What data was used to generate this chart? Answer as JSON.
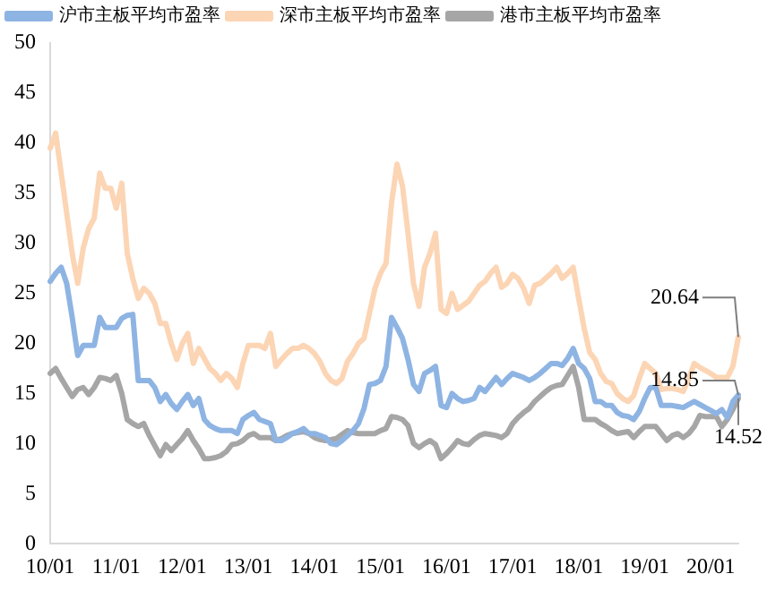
{
  "chart_data": {
    "type": "line",
    "categories": [
      "10/01",
      null,
      null,
      null,
      null,
      null,
      null,
      null,
      null,
      null,
      null,
      null,
      "11/01",
      null,
      null,
      null,
      null,
      null,
      null,
      null,
      null,
      null,
      null,
      null,
      "12/01",
      null,
      null,
      null,
      null,
      null,
      null,
      null,
      null,
      null,
      null,
      null,
      "13/01",
      null,
      null,
      null,
      null,
      null,
      null,
      null,
      null,
      null,
      null,
      null,
      "14/01",
      null,
      null,
      null,
      null,
      null,
      null,
      null,
      null,
      null,
      null,
      null,
      "15/01",
      null,
      null,
      null,
      null,
      null,
      null,
      null,
      null,
      null,
      null,
      null,
      "16/01",
      null,
      null,
      null,
      null,
      null,
      null,
      null,
      null,
      null,
      null,
      null,
      "17/01",
      null,
      null,
      null,
      null,
      null,
      null,
      null,
      null,
      null,
      null,
      null,
      "18/01",
      null,
      null,
      null,
      null,
      null,
      null,
      null,
      null,
      null,
      null,
      null,
      "19/01",
      null,
      null,
      null,
      null,
      null,
      null,
      null,
      null,
      null,
      null,
      null,
      "20/01",
      null,
      null,
      null,
      null,
      null
    ],
    "series": [
      {
        "name": "沪市主板平均市盈率",
        "color": "#8eb4e3",
        "values": [
          26.2,
          27,
          27.6,
          26,
          22.6,
          18.8,
          19.8,
          19.8,
          19.8,
          22.6,
          21.6,
          21.6,
          21.6,
          22.5,
          22.8,
          22.9,
          16.3,
          16.3,
          16.3,
          15.6,
          14.2,
          14.9,
          14,
          13.4,
          14.2,
          14.9,
          13.8,
          14.5,
          12.4,
          11.8,
          11.5,
          11.3,
          11.3,
          11.3,
          11,
          12.4,
          12.8,
          13.1,
          12.4,
          12.2,
          12,
          10.3,
          10.3,
          10.6,
          11,
          11.2,
          11.5,
          11,
          11,
          10.8,
          10.6,
          10,
          9.9,
          10.3,
          10.8,
          11.3,
          12,
          13.5,
          15.9,
          16,
          16.3,
          17.7,
          22.6,
          21.6,
          20.5,
          18.4,
          15.9,
          15.2,
          17,
          17.3,
          17.7,
          13.8,
          13.6,
          15,
          14.5,
          14.2,
          14.3,
          14.5,
          15.6,
          15.2,
          15.9,
          16.6,
          15.9,
          16.5,
          17,
          16.8,
          16.6,
          16.3,
          16.6,
          17,
          17.5,
          18,
          18,
          17.8,
          18.5,
          19.5,
          18,
          17.5,
          16.5,
          14.2,
          14.2,
          13.8,
          13.8,
          13.1,
          12.8,
          12.7,
          12.4,
          13.2,
          14.5,
          15.6,
          15.6,
          13.8,
          13.8,
          13.8,
          13.7,
          13.6,
          13.9,
          14.2,
          13.9,
          13.6,
          13.3,
          13,
          13.4,
          12.6,
          14.2,
          14.85
        ],
        "value_labels": [
          null,
          null,
          null,
          null,
          null,
          null,
          null,
          null,
          null,
          null,
          null,
          null,
          null,
          null,
          null,
          null,
          null,
          null,
          null,
          null,
          null,
          null,
          null,
          null,
          null,
          null,
          null,
          null,
          null,
          null,
          null,
          null,
          null,
          null,
          null,
          null,
          null,
          null,
          null,
          null,
          null,
          null,
          null,
          null,
          null,
          null,
          null,
          null,
          null,
          null,
          null,
          null,
          null,
          null,
          null,
          null,
          null,
          null,
          null,
          null,
          null,
          null,
          null,
          null,
          null,
          null,
          null,
          null,
          null,
          null,
          null,
          null,
          null,
          null,
          null,
          null,
          null,
          null,
          null,
          null,
          null,
          null,
          null,
          null,
          null,
          null,
          null,
          null,
          null,
          null,
          null,
          null,
          null,
          null,
          null,
          null,
          null,
          null,
          null,
          null,
          null,
          null,
          null,
          null,
          null,
          null,
          null,
          null,
          null,
          null,
          null,
          null,
          null,
          null,
          null,
          null,
          null,
          null,
          null,
          null,
          null,
          null,
          null,
          null,
          null,
          "14.85"
        ]
      },
      {
        "name": "深市主板平均市盈率",
        "color": "#fcd5b5",
        "values": [
          39.5,
          41,
          37,
          33,
          29,
          26,
          29.5,
          31.5,
          32.5,
          37,
          35.5,
          35.5,
          33.5,
          36,
          29,
          26.5,
          24.5,
          25.5,
          25,
          24,
          22,
          22,
          20,
          18.4,
          20,
          21,
          18,
          19.5,
          18.5,
          17.5,
          17,
          16.3,
          17,
          16.5,
          15.6,
          18,
          19.8,
          19.8,
          19.8,
          19.5,
          21,
          17.7,
          18.4,
          19,
          19.5,
          19.5,
          19.8,
          19.5,
          19,
          18.2,
          17,
          16.3,
          16,
          16.5,
          18.2,
          19,
          20,
          20.5,
          23,
          25.5,
          27,
          28,
          34,
          37.9,
          35.7,
          31,
          26,
          23.7,
          27.6,
          29,
          31,
          23.4,
          23,
          25,
          23.4,
          23.8,
          24.2,
          25,
          25.8,
          26.2,
          27,
          27.6,
          25.6,
          26,
          26.9,
          26.5,
          25.5,
          24,
          25.8,
          26,
          26.5,
          27,
          27.6,
          26.5,
          27,
          27.6,
          24.5,
          21.5,
          19.1,
          18.4,
          17,
          16.2,
          16,
          15,
          14.5,
          14.2,
          14.8,
          16.5,
          18,
          17.5,
          17,
          15.4,
          15.5,
          15.5,
          15.4,
          15.2,
          16.5,
          18,
          17.6,
          17.3,
          17,
          16.6,
          16.6,
          16.6,
          17.7,
          20.64
        ],
        "value_labels": [
          null,
          null,
          null,
          null,
          null,
          null,
          null,
          null,
          null,
          null,
          null,
          null,
          null,
          null,
          null,
          null,
          null,
          null,
          null,
          null,
          null,
          null,
          null,
          null,
          null,
          null,
          null,
          null,
          null,
          null,
          null,
          null,
          null,
          null,
          null,
          null,
          null,
          null,
          null,
          null,
          null,
          null,
          null,
          null,
          null,
          null,
          null,
          null,
          null,
          null,
          null,
          null,
          null,
          null,
          null,
          null,
          null,
          null,
          null,
          null,
          null,
          null,
          null,
          null,
          null,
          null,
          null,
          null,
          null,
          null,
          null,
          null,
          null,
          null,
          null,
          null,
          null,
          null,
          null,
          null,
          null,
          null,
          null,
          null,
          null,
          null,
          null,
          null,
          null,
          null,
          null,
          null,
          null,
          null,
          null,
          null,
          null,
          null,
          null,
          null,
          null,
          null,
          null,
          null,
          null,
          null,
          null,
          null,
          null,
          null,
          null,
          null,
          null,
          null,
          null,
          null,
          null,
          null,
          null,
          null,
          null,
          null,
          null,
          null,
          null,
          "20.64"
        ]
      },
      {
        "name": "港市主板平均市盈率",
        "color": "#a6a6a6",
        "values": [
          17,
          17.5,
          16.5,
          15.6,
          14.7,
          15.4,
          15.6,
          14.9,
          15.6,
          16.6,
          16.5,
          16.3,
          16.8,
          15,
          12.4,
          12,
          11.7,
          12,
          10.8,
          9.8,
          8.8,
          9.9,
          9.3,
          9.9,
          10.5,
          11.3,
          10.3,
          9.5,
          8.5,
          8.5,
          8.6,
          8.8,
          9.2,
          9.9,
          10,
          10.3,
          10.8,
          11,
          10.6,
          10.6,
          10.6,
          10.3,
          10.5,
          10.8,
          11,
          11.1,
          11.2,
          11,
          10.6,
          10.4,
          10.3,
          10.4,
          10.5,
          10.9,
          11.3,
          11.1,
          11,
          11,
          11,
          11,
          11.3,
          11.5,
          12.7,
          12.6,
          12.4,
          11.8,
          10,
          9.6,
          10,
          10.3,
          9.9,
          8.5,
          9,
          9.6,
          10.3,
          10,
          9.9,
          10.4,
          10.8,
          11,
          10.9,
          10.8,
          10.6,
          11,
          12,
          12.6,
          13.1,
          13.5,
          14.2,
          14.7,
          15.2,
          15.6,
          15.8,
          15.9,
          16.8,
          17.7,
          15.6,
          12.4,
          12.4,
          12.4,
          12,
          11.7,
          11.3,
          11,
          11.1,
          11.2,
          10.6,
          11.2,
          11.7,
          11.7,
          11.7,
          11,
          10.3,
          10.8,
          11,
          10.6,
          11,
          11.7,
          12.8,
          12.7,
          12.7,
          12.7,
          11.7,
          12.4,
          13.4,
          14.52
        ],
        "value_labels": [
          null,
          null,
          null,
          null,
          null,
          null,
          null,
          null,
          null,
          null,
          null,
          null,
          null,
          null,
          null,
          null,
          null,
          null,
          null,
          null,
          null,
          null,
          null,
          null,
          null,
          null,
          null,
          null,
          null,
          null,
          null,
          null,
          null,
          null,
          null,
          null,
          null,
          null,
          null,
          null,
          null,
          null,
          null,
          null,
          null,
          null,
          null,
          null,
          null,
          null,
          null,
          null,
          null,
          null,
          null,
          null,
          null,
          null,
          null,
          null,
          null,
          null,
          null,
          null,
          null,
          null,
          null,
          null,
          null,
          null,
          null,
          null,
          null,
          null,
          null,
          null,
          null,
          null,
          null,
          null,
          null,
          null,
          null,
          null,
          null,
          null,
          null,
          null,
          null,
          null,
          null,
          null,
          null,
          null,
          null,
          null,
          null,
          null,
          null,
          null,
          null,
          null,
          null,
          null,
          null,
          null,
          null,
          null,
          null,
          null,
          null,
          null,
          null,
          null,
          null,
          null,
          null,
          null,
          null,
          null,
          null,
          null,
          null,
          null,
          null,
          "14.52"
        ]
      }
    ],
    "ylim": [
      0,
      50
    ],
    "yticks": [
      0,
      5,
      10,
      15,
      20,
      25,
      30,
      35,
      40,
      45,
      50
    ],
    "grid": false,
    "legend": "top",
    "marker": "none",
    "line_style": "solid"
  }
}
